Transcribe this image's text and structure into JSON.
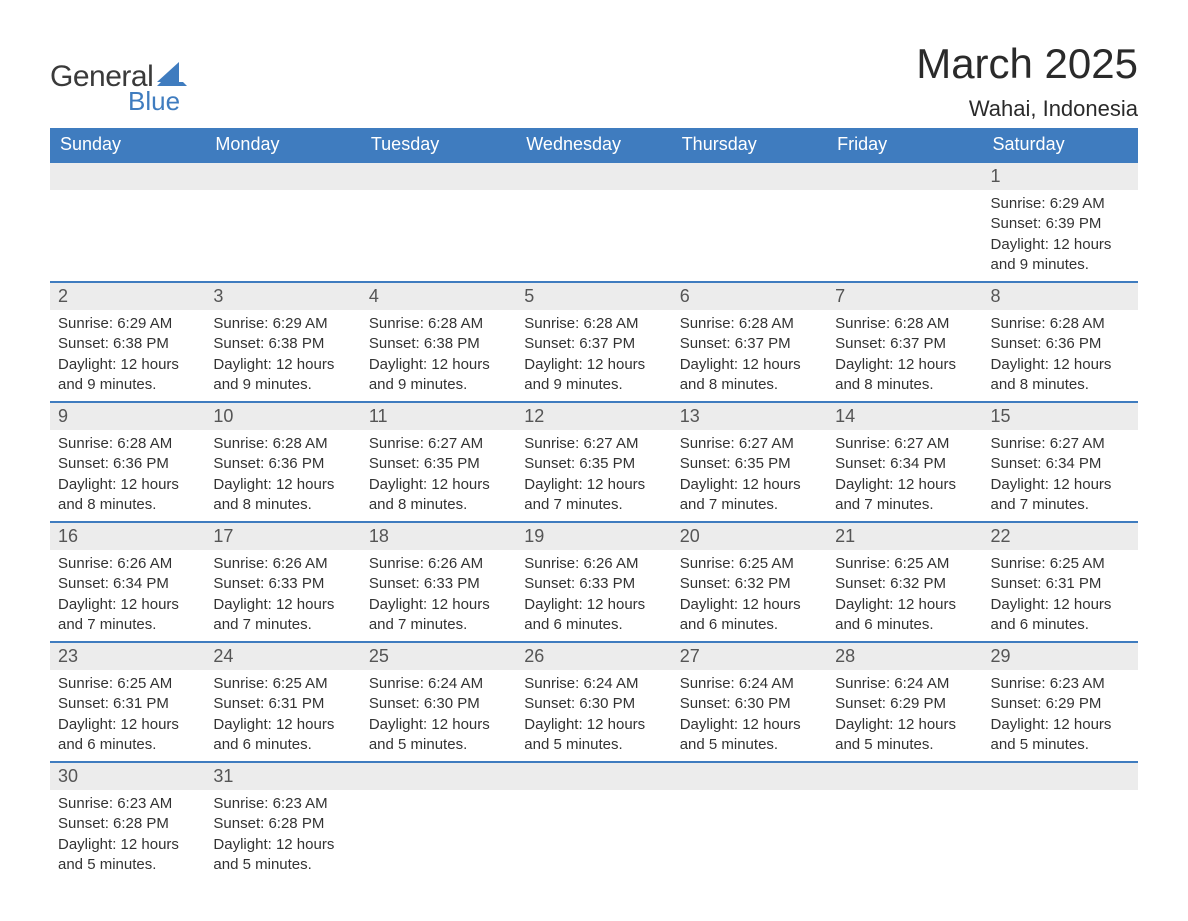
{
  "logo": {
    "text1": "General",
    "text2": "Blue"
  },
  "title": "March 2025",
  "location": "Wahai, Indonesia",
  "colors": {
    "header_bg": "#3f7cbf",
    "header_text": "#ffffff",
    "daynum_bg": "#ececec",
    "daynum_text": "#555555",
    "body_text": "#333333",
    "row_border": "#3f7cbf",
    "page_bg": "#ffffff",
    "logo_general": "#3a3a3a",
    "logo_blue": "#3f7cbf"
  },
  "typography": {
    "title_fontsize": 42,
    "location_fontsize": 22,
    "header_fontsize": 18,
    "daynum_fontsize": 18,
    "body_fontsize": 15
  },
  "layout": {
    "columns": 7,
    "rows": 6,
    "col_width_pct": 14.28
  },
  "day_headers": [
    "Sunday",
    "Monday",
    "Tuesday",
    "Wednesday",
    "Thursday",
    "Friday",
    "Saturday"
  ],
  "weeks": [
    [
      null,
      null,
      null,
      null,
      null,
      null,
      {
        "n": "1",
        "sunrise": "6:29 AM",
        "sunset": "6:39 PM",
        "daylight": "12 hours and 9 minutes."
      }
    ],
    [
      {
        "n": "2",
        "sunrise": "6:29 AM",
        "sunset": "6:38 PM",
        "daylight": "12 hours and 9 minutes."
      },
      {
        "n": "3",
        "sunrise": "6:29 AM",
        "sunset": "6:38 PM",
        "daylight": "12 hours and 9 minutes."
      },
      {
        "n": "4",
        "sunrise": "6:28 AM",
        "sunset": "6:38 PM",
        "daylight": "12 hours and 9 minutes."
      },
      {
        "n": "5",
        "sunrise": "6:28 AM",
        "sunset": "6:37 PM",
        "daylight": "12 hours and 9 minutes."
      },
      {
        "n": "6",
        "sunrise": "6:28 AM",
        "sunset": "6:37 PM",
        "daylight": "12 hours and 8 minutes."
      },
      {
        "n": "7",
        "sunrise": "6:28 AM",
        "sunset": "6:37 PM",
        "daylight": "12 hours and 8 minutes."
      },
      {
        "n": "8",
        "sunrise": "6:28 AM",
        "sunset": "6:36 PM",
        "daylight": "12 hours and 8 minutes."
      }
    ],
    [
      {
        "n": "9",
        "sunrise": "6:28 AM",
        "sunset": "6:36 PM",
        "daylight": "12 hours and 8 minutes."
      },
      {
        "n": "10",
        "sunrise": "6:28 AM",
        "sunset": "6:36 PM",
        "daylight": "12 hours and 8 minutes."
      },
      {
        "n": "11",
        "sunrise": "6:27 AM",
        "sunset": "6:35 PM",
        "daylight": "12 hours and 8 minutes."
      },
      {
        "n": "12",
        "sunrise": "6:27 AM",
        "sunset": "6:35 PM",
        "daylight": "12 hours and 7 minutes."
      },
      {
        "n": "13",
        "sunrise": "6:27 AM",
        "sunset": "6:35 PM",
        "daylight": "12 hours and 7 minutes."
      },
      {
        "n": "14",
        "sunrise": "6:27 AM",
        "sunset": "6:34 PM",
        "daylight": "12 hours and 7 minutes."
      },
      {
        "n": "15",
        "sunrise": "6:27 AM",
        "sunset": "6:34 PM",
        "daylight": "12 hours and 7 minutes."
      }
    ],
    [
      {
        "n": "16",
        "sunrise": "6:26 AM",
        "sunset": "6:34 PM",
        "daylight": "12 hours and 7 minutes."
      },
      {
        "n": "17",
        "sunrise": "6:26 AM",
        "sunset": "6:33 PM",
        "daylight": "12 hours and 7 minutes."
      },
      {
        "n": "18",
        "sunrise": "6:26 AM",
        "sunset": "6:33 PM",
        "daylight": "12 hours and 7 minutes."
      },
      {
        "n": "19",
        "sunrise": "6:26 AM",
        "sunset": "6:33 PM",
        "daylight": "12 hours and 6 minutes."
      },
      {
        "n": "20",
        "sunrise": "6:25 AM",
        "sunset": "6:32 PM",
        "daylight": "12 hours and 6 minutes."
      },
      {
        "n": "21",
        "sunrise": "6:25 AM",
        "sunset": "6:32 PM",
        "daylight": "12 hours and 6 minutes."
      },
      {
        "n": "22",
        "sunrise": "6:25 AM",
        "sunset": "6:31 PM",
        "daylight": "12 hours and 6 minutes."
      }
    ],
    [
      {
        "n": "23",
        "sunrise": "6:25 AM",
        "sunset": "6:31 PM",
        "daylight": "12 hours and 6 minutes."
      },
      {
        "n": "24",
        "sunrise": "6:25 AM",
        "sunset": "6:31 PM",
        "daylight": "12 hours and 6 minutes."
      },
      {
        "n": "25",
        "sunrise": "6:24 AM",
        "sunset": "6:30 PM",
        "daylight": "12 hours and 5 minutes."
      },
      {
        "n": "26",
        "sunrise": "6:24 AM",
        "sunset": "6:30 PM",
        "daylight": "12 hours and 5 minutes."
      },
      {
        "n": "27",
        "sunrise": "6:24 AM",
        "sunset": "6:30 PM",
        "daylight": "12 hours and 5 minutes."
      },
      {
        "n": "28",
        "sunrise": "6:24 AM",
        "sunset": "6:29 PM",
        "daylight": "12 hours and 5 minutes."
      },
      {
        "n": "29",
        "sunrise": "6:23 AM",
        "sunset": "6:29 PM",
        "daylight": "12 hours and 5 minutes."
      }
    ],
    [
      {
        "n": "30",
        "sunrise": "6:23 AM",
        "sunset": "6:28 PM",
        "daylight": "12 hours and 5 minutes."
      },
      {
        "n": "31",
        "sunrise": "6:23 AM",
        "sunset": "6:28 PM",
        "daylight": "12 hours and 5 minutes."
      },
      null,
      null,
      null,
      null,
      null
    ]
  ],
  "labels": {
    "sunrise_prefix": "Sunrise: ",
    "sunset_prefix": "Sunset: ",
    "daylight_prefix": "Daylight: "
  }
}
